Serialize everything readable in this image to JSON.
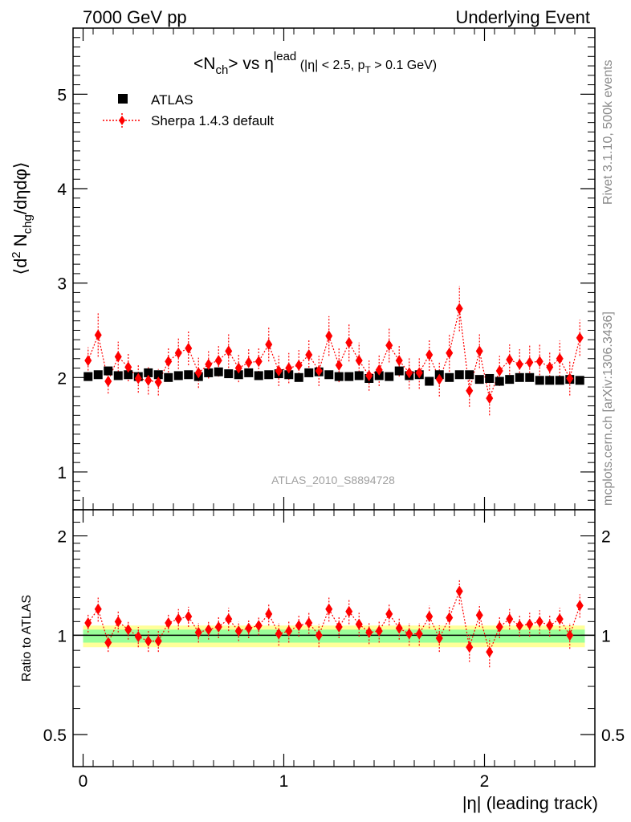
{
  "header": {
    "left": "7000 GeV pp",
    "right": "Underlying Event"
  },
  "side_labels": {
    "rivet": "Rivet 3.1.10,  500k events",
    "mcplots": "mcplots.cern.ch [arXiv:1306.3436]"
  },
  "plot_title": {
    "main": "<N",
    "main_sub": "ch",
    "vs": "> vs η",
    "vs_sup": "lead",
    "cuts_a": " (|η| < 2.5, p",
    "cuts_sub": "T",
    "cuts_b": " > 0.1 GeV)"
  },
  "analysis_stamp": "ATLAS_2010_S8894728",
  "legend": {
    "data_label": "ATLAS",
    "mc_label": "Sherpa 1.4.3 default"
  },
  "axes": {
    "y_main_title": "⟨d² N_chg/dηdφ⟩",
    "y_ratio_title": "Ratio to ATLAS",
    "x_title": "|η| (leading track)",
    "y_main_ticks": [
      "1",
      "2",
      "3",
      "4",
      "5"
    ],
    "y_ratio_ticks": [
      "0.5",
      "1",
      "2"
    ],
    "x_ticks": [
      "0",
      "1",
      "2"
    ]
  },
  "colors": {
    "data": "#000000",
    "mc": "#ff0000",
    "band_inner": "#99ff99",
    "band_outer": "#ffff99"
  },
  "chart_data": {
    "type": "scatter",
    "x_range": [
      -0.05,
      2.55
    ],
    "y_main_range": [
      0.6,
      5.7
    ],
    "y_ratio_range": [
      0.4,
      2.4
    ],
    "y_ratio_scale": "log",
    "x": [
      0.025,
      0.075,
      0.125,
      0.175,
      0.225,
      0.275,
      0.325,
      0.375,
      0.425,
      0.475,
      0.525,
      0.575,
      0.625,
      0.675,
      0.725,
      0.775,
      0.825,
      0.875,
      0.925,
      0.975,
      1.025,
      1.075,
      1.125,
      1.175,
      1.225,
      1.275,
      1.325,
      1.375,
      1.425,
      1.475,
      1.525,
      1.575,
      1.625,
      1.675,
      1.725,
      1.775,
      1.825,
      1.875,
      1.925,
      1.975,
      2.025,
      2.075,
      2.125,
      2.175,
      2.225,
      2.275,
      2.325,
      2.375,
      2.425,
      2.475
    ],
    "series": [
      {
        "name": "ATLAS",
        "values": [
          2.01,
          2.03,
          2.07,
          2.02,
          2.03,
          2.01,
          2.05,
          2.03,
          2.0,
          2.02,
          2.03,
          2.01,
          2.05,
          2.06,
          2.04,
          2.03,
          2.05,
          2.02,
          2.03,
          2.04,
          2.03,
          2.0,
          2.05,
          2.06,
          2.03,
          2.01,
          2.01,
          2.02,
          1.99,
          2.02,
          2.01,
          2.07,
          2.02,
          2.03,
          1.96,
          2.03,
          2.0,
          2.03,
          2.03,
          1.98,
          1.99,
          1.96,
          1.98,
          2.0,
          2.0,
          1.97,
          1.97,
          1.97,
          1.98,
          1.97
        ]
      },
      {
        "name": "Sherpa 1.4.3 default",
        "values": [
          2.18,
          2.45,
          1.96,
          2.22,
          2.11,
          1.99,
          1.97,
          1.95,
          2.17,
          2.26,
          2.31,
          2.05,
          2.14,
          2.18,
          2.28,
          2.1,
          2.16,
          2.17,
          2.35,
          2.07,
          2.1,
          2.13,
          2.24,
          2.07,
          2.44,
          2.13,
          2.37,
          2.18,
          2.02,
          2.08,
          2.34,
          2.18,
          2.05,
          2.05,
          2.24,
          1.98,
          2.26,
          2.73,
          1.86,
          2.28,
          1.78,
          2.07,
          2.19,
          2.14,
          2.16,
          2.17,
          2.11,
          2.2,
          1.99,
          2.42
        ],
        "errors": [
          0.14,
          0.23,
          0.13,
          0.16,
          0.15,
          0.15,
          0.15,
          0.14,
          0.15,
          0.17,
          0.18,
          0.16,
          0.15,
          0.17,
          0.18,
          0.15,
          0.15,
          0.15,
          0.18,
          0.16,
          0.16,
          0.16,
          0.17,
          0.16,
          0.21,
          0.18,
          0.2,
          0.19,
          0.16,
          0.17,
          0.18,
          0.17,
          0.17,
          0.17,
          0.17,
          0.18,
          0.2,
          0.24,
          0.17,
          0.18,
          0.18,
          0.16,
          0.16,
          0.16,
          0.18,
          0.18,
          0.17,
          0.19,
          0.18,
          0.19
        ]
      }
    ],
    "ratio": {
      "name": "Sherpa 1.4.3 default",
      "values": [
        1.09,
        1.2,
        0.95,
        1.1,
        1.04,
        0.99,
        0.96,
        0.96,
        1.09,
        1.12,
        1.14,
        1.02,
        1.04,
        1.06,
        1.12,
        1.03,
        1.05,
        1.07,
        1.16,
        1.01,
        1.03,
        1.07,
        1.09,
        1.0,
        1.2,
        1.06,
        1.18,
        1.08,
        1.02,
        1.03,
        1.16,
        1.05,
        1.01,
        1.01,
        1.14,
        0.98,
        1.13,
        1.36,
        0.92,
        1.15,
        0.89,
        1.06,
        1.12,
        1.07,
        1.08,
        1.1,
        1.07,
        1.12,
        1.0,
        1.23
      ],
      "errors": [
        0.07,
        0.1,
        0.06,
        0.08,
        0.07,
        0.07,
        0.07,
        0.07,
        0.07,
        0.08,
        0.08,
        0.07,
        0.07,
        0.08,
        0.09,
        0.07,
        0.07,
        0.07,
        0.09,
        0.08,
        0.08,
        0.08,
        0.08,
        0.08,
        0.1,
        0.08,
        0.1,
        0.09,
        0.08,
        0.08,
        0.09,
        0.08,
        0.08,
        0.08,
        0.09,
        0.09,
        0.1,
        0.12,
        0.09,
        0.09,
        0.09,
        0.08,
        0.08,
        0.08,
        0.09,
        0.09,
        0.08,
        0.09,
        0.09,
        0.1
      ]
    },
    "uncertainty_band": {
      "inner": [
        0.95,
        1.04
      ],
      "outer": [
        0.92,
        1.07
      ]
    }
  }
}
